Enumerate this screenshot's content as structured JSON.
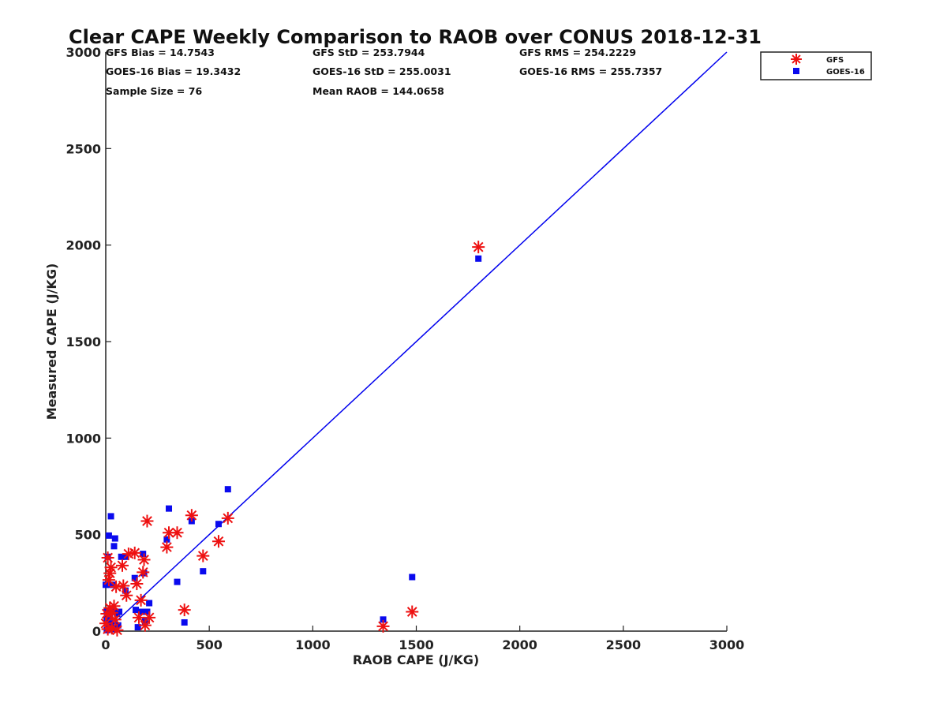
{
  "chart_data": {
    "type": "scatter",
    "title": "Clear CAPE Weekly Comparison to RAOB over CONUS 2018-12-31",
    "xlabel": "RAOB CAPE (J/KG)",
    "ylabel": "Measured CAPE (J/KG)",
    "xlim": [
      0,
      3000
    ],
    "ylim": [
      0,
      3000
    ],
    "xticks": [
      "0",
      "500",
      "1000",
      "1500",
      "2000",
      "2500",
      "3000"
    ],
    "yticks": [
      "0",
      "500",
      "1000",
      "1500",
      "2000",
      "2500",
      "3000"
    ],
    "grid": false,
    "legend_position": "top-right",
    "stats": {
      "gfs_bias": "GFS Bias = 14.7543",
      "goes_bias": "GOES-16 Bias = 19.3432",
      "sample_size": "Sample Size = 76",
      "gfs_std": "GFS StD = 253.7944",
      "goes_std": "GOES-16 StD = 255.0031",
      "mean_raob": "Mean RAOB = 144.0658",
      "gfs_rms": "GFS RMS = 254.2229",
      "goes_rms": "GOES-16 RMS = 255.7357"
    },
    "reference_line": {
      "x": [
        0,
        3000
      ],
      "y": [
        0,
        3000
      ],
      "color": "#0000ee"
    },
    "series": [
      {
        "name": "GFS",
        "marker": "asterisk",
        "color": "#ee1111",
        "points": [
          [
            1800,
            1990
          ],
          [
            1480,
            100
          ],
          [
            1340,
            25
          ],
          [
            590,
            585
          ],
          [
            545,
            465
          ],
          [
            470,
            390
          ],
          [
            415,
            600
          ],
          [
            380,
            110
          ],
          [
            345,
            510
          ],
          [
            305,
            510
          ],
          [
            295,
            435
          ],
          [
            200,
            570
          ],
          [
            185,
            370
          ],
          [
            180,
            305
          ],
          [
            170,
            160
          ],
          [
            150,
            245
          ],
          [
            140,
            405
          ],
          [
            110,
            400
          ],
          [
            100,
            185
          ],
          [
            85,
            235
          ],
          [
            80,
            340
          ],
          [
            50,
            230
          ],
          [
            40,
            130
          ],
          [
            30,
            95
          ],
          [
            25,
            330
          ],
          [
            20,
            300
          ],
          [
            15,
            265
          ],
          [
            10,
            380
          ],
          [
            5,
            90
          ],
          [
            0,
            40
          ],
          [
            10,
            10
          ],
          [
            30,
            15
          ],
          [
            55,
            5
          ],
          [
            160,
            70
          ],
          [
            190,
            30
          ],
          [
            210,
            70
          ],
          [
            20,
            120
          ],
          [
            45,
            60
          ]
        ]
      },
      {
        "name": "GOES-16",
        "marker": "square",
        "color": "#0a0aee",
        "points": [
          [
            1800,
            1930
          ],
          [
            1480,
            280
          ],
          [
            1340,
            60
          ],
          [
            590,
            735
          ],
          [
            545,
            555
          ],
          [
            470,
            310
          ],
          [
            415,
            570
          ],
          [
            380,
            45
          ],
          [
            345,
            255
          ],
          [
            305,
            635
          ],
          [
            295,
            475
          ],
          [
            210,
            145
          ],
          [
            200,
            100
          ],
          [
            190,
            50
          ],
          [
            185,
            300
          ],
          [
            180,
            400
          ],
          [
            170,
            100
          ],
          [
            155,
            20
          ],
          [
            145,
            110
          ],
          [
            140,
            275
          ],
          [
            95,
            210
          ],
          [
            95,
            385
          ],
          [
            75,
            385
          ],
          [
            45,
            480
          ],
          [
            40,
            440
          ],
          [
            25,
            595
          ],
          [
            15,
            495
          ],
          [
            10,
            385
          ],
          [
            0,
            240
          ],
          [
            20,
            240
          ],
          [
            35,
            240
          ],
          [
            5,
            100
          ],
          [
            5,
            60
          ],
          [
            10,
            20
          ],
          [
            20,
            80
          ],
          [
            40,
            100
          ],
          [
            55,
            90
          ],
          [
            60,
            30
          ],
          [
            45,
            10
          ],
          [
            5,
            5
          ],
          [
            25,
            40
          ],
          [
            65,
            100
          ]
        ]
      }
    ]
  }
}
